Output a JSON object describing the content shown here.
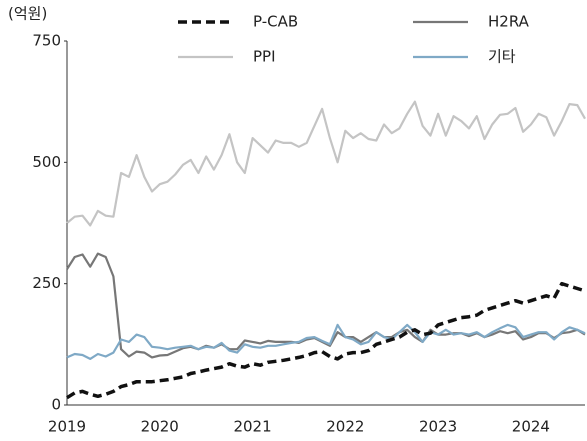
{
  "chart_data": {
    "type": "line",
    "y_unit_label": "(억원)",
    "categories": [
      "2019",
      null,
      null,
      null,
      null,
      null,
      null,
      null,
      null,
      null,
      null,
      null,
      "2020",
      null,
      null,
      null,
      null,
      null,
      null,
      null,
      null,
      null,
      null,
      null,
      "2021",
      null,
      null,
      null,
      null,
      null,
      null,
      null,
      null,
      null,
      null,
      null,
      "2022",
      null,
      null,
      null,
      null,
      null,
      null,
      null,
      null,
      null,
      null,
      null,
      "2023",
      null,
      null,
      null,
      null,
      null,
      null,
      null,
      null,
      null,
      null,
      null,
      "2024",
      null,
      null,
      null,
      null,
      null,
      null,
      null
    ],
    "series": [
      {
        "name": "P-CAB",
        "color": "#111111",
        "dashed": true,
        "values": [
          15,
          25,
          28,
          22,
          18,
          22,
          28,
          38,
          42,
          48,
          48,
          48,
          50,
          52,
          55,
          58,
          65,
          68,
          72,
          75,
          78,
          85,
          80,
          78,
          85,
          82,
          88,
          90,
          92,
          95,
          98,
          102,
          108,
          110,
          100,
          95,
          105,
          108,
          108,
          112,
          125,
          130,
          135,
          140,
          150,
          155,
          145,
          148,
          165,
          170,
          175,
          180,
          182,
          185,
          195,
          200,
          205,
          210,
          215,
          210,
          215,
          220,
          225,
          220,
          250,
          245,
          240,
          235
        ]
      },
      {
        "name": "H2RA",
        "color": "#777777",
        "values": [
          280,
          305,
          310,
          285,
          312,
          305,
          265,
          115,
          100,
          110,
          108,
          98,
          102,
          103,
          110,
          117,
          120,
          115,
          122,
          118,
          125,
          115,
          115,
          133,
          130,
          127,
          132,
          130,
          130,
          130,
          128,
          135,
          138,
          130,
          122,
          150,
          140,
          140,
          130,
          140,
          150,
          140,
          140,
          150,
          155,
          140,
          130,
          155,
          145,
          145,
          148,
          148,
          142,
          148,
          140,
          145,
          152,
          148,
          152,
          135,
          140,
          148,
          148,
          138,
          148,
          150,
          155,
          145
        ]
      },
      {
        "name": "PPI",
        "color": "#c4c4c4",
        "values": [
          375,
          388,
          390,
          370,
          400,
          390,
          388,
          478,
          470,
          515,
          470,
          440,
          455,
          460,
          475,
          495,
          505,
          478,
          512,
          485,
          515,
          558,
          500,
          478,
          550,
          535,
          520,
          545,
          540,
          540,
          532,
          540,
          575,
          610,
          550,
          500,
          565,
          550,
          560,
          548,
          545,
          578,
          560,
          570,
          600,
          625,
          575,
          555,
          600,
          555,
          595,
          585,
          570,
          595,
          548,
          578,
          598,
          600,
          612,
          563,
          578,
          600,
          593,
          555,
          585,
          620,
          618,
          590
        ]
      },
      {
        "name": "기타",
        "color": "#7fa9c6",
        "values": [
          98,
          105,
          103,
          95,
          105,
          100,
          108,
          135,
          130,
          145,
          140,
          120,
          118,
          115,
          118,
          120,
          122,
          115,
          120,
          118,
          128,
          112,
          108,
          125,
          120,
          118,
          122,
          122,
          125,
          128,
          130,
          138,
          140,
          132,
          125,
          165,
          140,
          135,
          125,
          130,
          150,
          140,
          135,
          150,
          165,
          150,
          130,
          150,
          145,
          155,
          145,
          148,
          145,
          150,
          140,
          150,
          158,
          165,
          160,
          140,
          145,
          150,
          150,
          135,
          150,
          160,
          155,
          148
        ]
      }
    ],
    "ylim": [
      0,
      750
    ],
    "yticks": [
      0,
      250,
      500,
      750
    ]
  }
}
